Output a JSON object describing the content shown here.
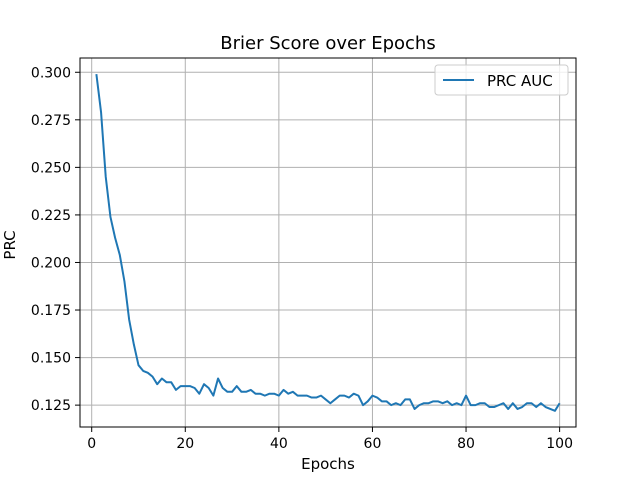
{
  "chart_data": {
    "type": "line",
    "title": "Brier Score over Epochs",
    "xlabel": "Epochs",
    "ylabel": "PRC",
    "xlim": [
      -2.5,
      103.5
    ],
    "ylim": [
      0.1135,
      0.3075
    ],
    "xticks": [
      0,
      20,
      40,
      60,
      80,
      100
    ],
    "yticks": [
      0.125,
      0.15,
      0.175,
      0.2,
      0.225,
      0.25,
      0.275,
      0.3
    ],
    "ytick_labels": [
      "0.125",
      "0.150",
      "0.175",
      "0.200",
      "0.225",
      "0.250",
      "0.275",
      "0.300"
    ],
    "grid": true,
    "legend_position": "top-right",
    "colors": {
      "series": "#1f77b4",
      "grid": "#b0b0b0",
      "axis": "#000000"
    },
    "series": [
      {
        "name": "PRC AUC",
        "x": [
          1,
          2,
          3,
          4,
          5,
          6,
          7,
          8,
          9,
          10,
          11,
          12,
          13,
          14,
          15,
          16,
          17,
          18,
          19,
          20,
          21,
          22,
          23,
          24,
          25,
          26,
          27,
          28,
          29,
          30,
          31,
          32,
          33,
          34,
          35,
          36,
          37,
          38,
          39,
          40,
          41,
          42,
          43,
          44,
          45,
          46,
          47,
          48,
          49,
          50,
          51,
          52,
          53,
          54,
          55,
          56,
          57,
          58,
          59,
          60,
          61,
          62,
          63,
          64,
          65,
          66,
          67,
          68,
          69,
          70,
          71,
          72,
          73,
          74,
          75,
          76,
          77,
          78,
          79,
          80,
          81,
          82,
          83,
          84,
          85,
          86,
          87,
          88,
          89,
          90,
          91,
          92,
          93,
          94,
          95,
          96,
          97,
          98,
          99,
          100
        ],
        "values": [
          0.299,
          0.279,
          0.245,
          0.224,
          0.213,
          0.204,
          0.19,
          0.17,
          0.157,
          0.146,
          0.143,
          0.142,
          0.14,
          0.136,
          0.139,
          0.137,
          0.137,
          0.133,
          0.135,
          0.135,
          0.135,
          0.134,
          0.131,
          0.136,
          0.134,
          0.13,
          0.139,
          0.134,
          0.132,
          0.132,
          0.135,
          0.132,
          0.132,
          0.133,
          0.131,
          0.131,
          0.13,
          0.131,
          0.131,
          0.13,
          0.133,
          0.131,
          0.132,
          0.13,
          0.13,
          0.13,
          0.129,
          0.129,
          0.13,
          0.128,
          0.126,
          0.128,
          0.13,
          0.13,
          0.129,
          0.131,
          0.13,
          0.125,
          0.127,
          0.13,
          0.129,
          0.127,
          0.127,
          0.125,
          0.126,
          0.125,
          0.128,
          0.128,
          0.123,
          0.125,
          0.126,
          0.126,
          0.127,
          0.127,
          0.126,
          0.127,
          0.125,
          0.126,
          0.125,
          0.13,
          0.125,
          0.125,
          0.126,
          0.126,
          0.124,
          0.124,
          0.125,
          0.126,
          0.123,
          0.126,
          0.123,
          0.124,
          0.126,
          0.126,
          0.124,
          0.126,
          0.124,
          0.123,
          0.122,
          0.126
        ]
      }
    ]
  }
}
